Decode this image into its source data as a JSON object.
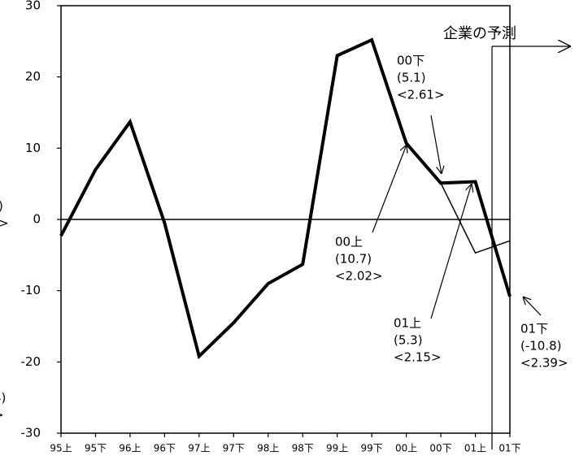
{
  "chart_data": {
    "type": "line",
    "categories": [
      "95上",
      "95下",
      "96上",
      "96下",
      "97上",
      "97下",
      "98上",
      "98下",
      "99上",
      "99下",
      "00上",
      "00下",
      "01上",
      "01下"
    ],
    "series": [
      {
        "color": "#000000",
        "values": [
          -2.3,
          7,
          13.7,
          -0.5,
          -19.2,
          -14.5,
          -9,
          -6.3,
          23,
          25.2,
          10.7,
          5.1,
          5.3,
          -10.8
        ]
      },
      {
        "color": "#000000",
        "values": [
          null,
          null,
          null,
          null,
          null,
          null,
          null,
          null,
          null,
          null,
          null,
          5.1,
          -4.7,
          -3.0
        ]
      }
    ],
    "ylim": [
      -30,
      30
    ],
    "yticks": [
      -30,
      -20,
      -10,
      0,
      10,
      20,
      30
    ],
    "forecast_label": "企業の予測",
    "annotations": [
      {
        "lines": [
          "00下",
          "(5.1)",
          "<2.61>"
        ]
      },
      {
        "lines": [
          "00上",
          "(10.7)",
          "<2.02>"
        ]
      },
      {
        "lines": [
          "01上",
          "(5.3)",
          "<2.15>"
        ]
      },
      {
        "lines": [
          "01下",
          "(-10.8)",
          "<2.39>"
        ]
      },
      {
        "lines": [
          ")",
          ">"
        ]
      },
      {
        "lines": [
          "4)",
          ">"
        ]
      }
    ]
  }
}
